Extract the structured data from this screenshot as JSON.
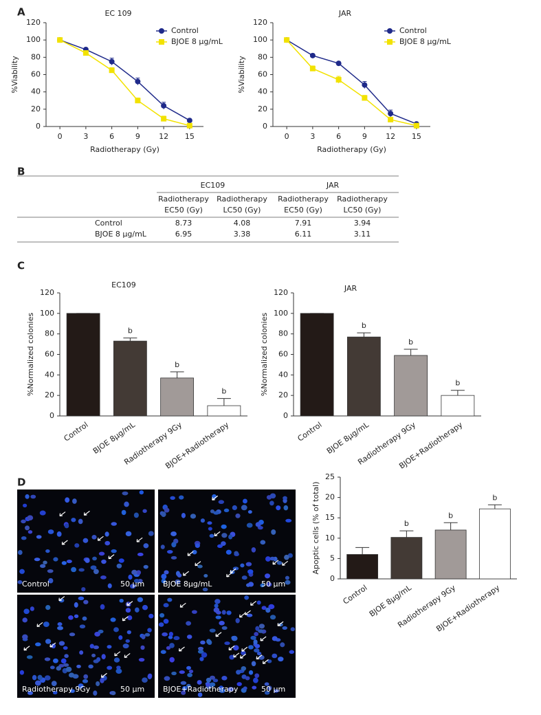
{
  "panel_labels": [
    "A",
    "B",
    "C",
    "D"
  ],
  "chart_data": [
    {
      "type": "line",
      "title": "EC 109",
      "x_label": "Radiotherapy (Gy)",
      "y_label": "%Viability",
      "x": [
        0,
        3,
        6,
        9,
        12,
        15
      ],
      "xlim": [
        -1.6,
        16.6
      ],
      "xticks": [
        0,
        3,
        6,
        9,
        12,
        15
      ],
      "ylim": [
        0,
        120
      ],
      "yticks": [
        0,
        20,
        40,
        60,
        80,
        100,
        120
      ],
      "legend": "upper right",
      "series": [
        {
          "name": "Control",
          "color": "#1f2a8a",
          "marker": "circle",
          "values": [
            100,
            89,
            75,
            52,
            24,
            7
          ],
          "errors": [
            0,
            1,
            4,
            4,
            4,
            1
          ]
        },
        {
          "name": "BJOE 8 μg/mL",
          "color": "#f2e200",
          "marker": "square",
          "values": [
            100,
            85,
            65,
            30,
            9,
            1
          ],
          "errors": [
            0,
            2,
            3,
            3,
            3,
            0
          ]
        }
      ]
    },
    {
      "type": "line",
      "title": "JAR",
      "x_label": "Radiotherapy (Gy)",
      "y_label": "%Viability",
      "x": [
        0,
        3,
        6,
        9,
        12,
        15
      ],
      "xlim": [
        -1.6,
        16.6
      ],
      "xticks": [
        0,
        3,
        6,
        9,
        12,
        15
      ],
      "ylim": [
        0,
        120
      ],
      "yticks": [
        0,
        20,
        40,
        60,
        80,
        100,
        120
      ],
      "legend": "upper right",
      "series": [
        {
          "name": "Control",
          "color": "#1f2a8a",
          "marker": "circle",
          "values": [
            100,
            82,
            73,
            48,
            15,
            3
          ],
          "errors": [
            0,
            2,
            2,
            4,
            4,
            1
          ]
        },
        {
          "name": "BJOE 8 μg/mL",
          "color": "#f2e200",
          "marker": "square",
          "values": [
            100,
            67,
            54,
            33,
            8,
            1
          ],
          "errors": [
            0,
            3,
            4,
            3,
            2,
            0
          ]
        }
      ]
    },
    {
      "type": "bar",
      "title": "EC109",
      "y_label": "%Normalized colonies",
      "categories": [
        "Control",
        "BJOE 8μg/mL",
        "Radiotherapy 9Gy",
        "BJOE+Radiotherapy"
      ],
      "values": [
        100,
        73,
        37,
        10
      ],
      "errors": [
        0,
        3,
        6,
        7
      ],
      "annotations": [
        null,
        "b",
        "b",
        "b"
      ],
      "colors": [
        "#231a17",
        "#433a35",
        "#a19a98",
        "#ffffff"
      ],
      "ylim": [
        0,
        120
      ],
      "yticks": [
        0,
        20,
        40,
        60,
        80,
        100,
        120
      ]
    },
    {
      "type": "bar",
      "title": "JAR",
      "y_label": "%Normalized colonies",
      "categories": [
        "Control",
        "BJOE 8μg/mL",
        "Radiotherapy 9Gy",
        "BJOE+Radiotherapy"
      ],
      "values": [
        100,
        77,
        59,
        20
      ],
      "errors": [
        0,
        4,
        6,
        5
      ],
      "annotations": [
        null,
        "b",
        "b",
        "b"
      ],
      "colors": [
        "#231a17",
        "#433a35",
        "#a19a98",
        "#ffffff"
      ],
      "ylim": [
        0,
        120
      ],
      "yticks": [
        0,
        20,
        40,
        60,
        80,
        100,
        120
      ]
    },
    {
      "type": "bar",
      "y_label": "Apoptic cells (% of total)",
      "categories": [
        "Control",
        "BJOE 8μg/mL",
        "Radiotherapy 9Gy",
        "BJOE+Radiotherapy"
      ],
      "values": [
        6,
        10.2,
        12,
        17.2
      ],
      "errors": [
        1.7,
        1.6,
        1.8,
        1
      ],
      "annotations": [
        null,
        "b",
        "b",
        "b"
      ],
      "colors": [
        "#231a17",
        "#433a35",
        "#a19a98",
        "#ffffff"
      ],
      "ylim": [
        0,
        25
      ],
      "yticks": [
        0,
        5,
        10,
        15,
        20,
        25
      ]
    }
  ],
  "table": {
    "groups": [
      "EC109",
      "JAR"
    ],
    "columns": [
      [
        "Radiotherapy",
        "EC50 (Gy)"
      ],
      [
        "Radiotherapy",
        "LC50 (Gy)"
      ],
      [
        "Radiotherapy",
        "EC50 (Gy)"
      ],
      [
        "Radiotherapy",
        "LC50 (Gy)"
      ]
    ],
    "rows": [
      [
        "Control",
        8.73,
        4.08,
        7.91,
        3.94
      ],
      [
        "BJOE 8 μg/mL",
        6.95,
        3.38,
        6.11,
        3.11
      ]
    ]
  },
  "micrographs": [
    {
      "label": "Control",
      "scale": "50 μm"
    },
    {
      "label": "BJOE 8μg/mL",
      "scale": "50 μm"
    },
    {
      "label": "Radiotherapy 9Gy",
      "scale": "50 μm"
    },
    {
      "label": "BJOE+Radiotherapy",
      "scale": "50 μm"
    }
  ]
}
